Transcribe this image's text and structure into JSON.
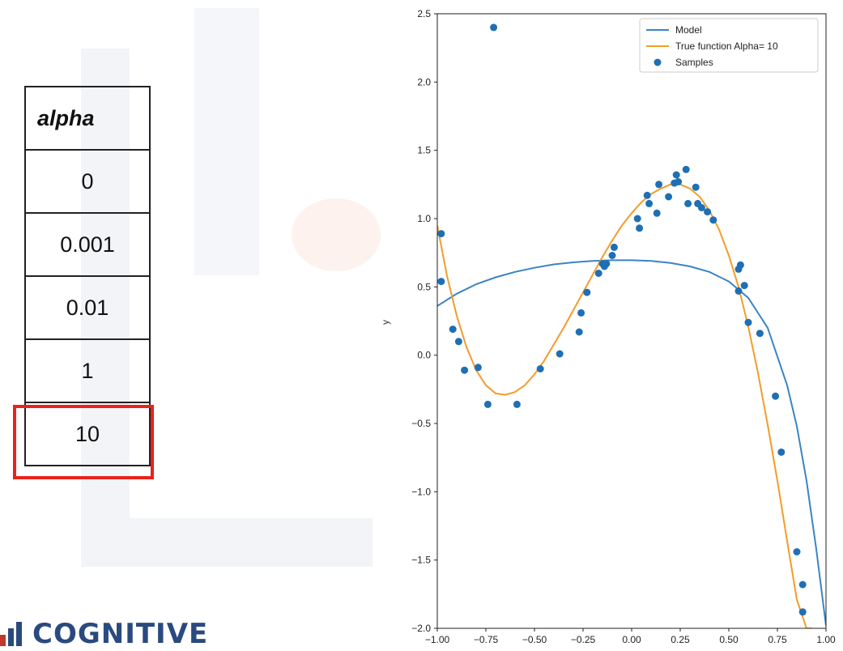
{
  "alpha_table": {
    "header": "alpha",
    "rows": [
      "0",
      "0.001",
      "0.01",
      "1",
      "10"
    ],
    "highlighted_value": "10",
    "highlight_color": "#e8231b"
  },
  "logo": {
    "text": "COGNITIVE",
    "color": "#2a4a7f"
  },
  "chart_data": {
    "type": "line",
    "xlabel": "",
    "ylabel": "y",
    "xlim": [
      -1.0,
      1.0
    ],
    "ylim": [
      -2.0,
      2.5
    ],
    "x_ticks": [
      -1.0,
      -0.75,
      -0.5,
      -0.25,
      0.0,
      0.25,
      0.5,
      0.75,
      1.0
    ],
    "x_tick_labels": [
      "−1.00",
      "−0.75",
      "−0.50",
      "−0.25",
      "0.00",
      "0.25",
      "0.50",
      "0.75",
      "1.00"
    ],
    "y_ticks": [
      -2.0,
      -1.5,
      -1.0,
      -0.5,
      0.0,
      0.5,
      1.0,
      1.5,
      2.0,
      2.5
    ],
    "y_tick_labels": [
      "−2.0",
      "−1.5",
      "−1.0",
      "−0.5",
      "0.0",
      "0.5",
      "1.0",
      "1.5",
      "2.0",
      "2.5"
    ],
    "grid": false,
    "legend_position": "top-right",
    "series": [
      {
        "name": "Model",
        "kind": "line",
        "color": "#3b84c4",
        "x": [
          -1.0,
          -0.9,
          -0.8,
          -0.7,
          -0.6,
          -0.5,
          -0.4,
          -0.3,
          -0.2,
          -0.1,
          0.0,
          0.1,
          0.2,
          0.3,
          0.4,
          0.5,
          0.6,
          0.7,
          0.8,
          0.85,
          0.9,
          0.95,
          1.0
        ],
        "y": [
          0.36,
          0.45,
          0.52,
          0.57,
          0.61,
          0.64,
          0.665,
          0.68,
          0.69,
          0.695,
          0.695,
          0.69,
          0.675,
          0.65,
          0.61,
          0.54,
          0.42,
          0.2,
          -0.22,
          -0.52,
          -0.92,
          -1.42,
          -1.98
        ]
      },
      {
        "name": "True function Alpha= 10",
        "kind": "line",
        "color": "#f39c2a",
        "x": [
          -1.0,
          -0.95,
          -0.9,
          -0.85,
          -0.8,
          -0.75,
          -0.7,
          -0.65,
          -0.6,
          -0.55,
          -0.5,
          -0.45,
          -0.4,
          -0.35,
          -0.3,
          -0.25,
          -0.2,
          -0.15,
          -0.1,
          -0.05,
          0.0,
          0.05,
          0.1,
          0.15,
          0.2,
          0.25,
          0.3,
          0.35,
          0.4,
          0.45,
          0.5,
          0.55,
          0.6,
          0.65,
          0.7,
          0.75,
          0.8,
          0.85,
          0.9,
          0.93
        ],
        "y": [
          0.95,
          0.58,
          0.29,
          0.06,
          -0.11,
          -0.22,
          -0.28,
          -0.29,
          -0.27,
          -0.22,
          -0.14,
          -0.04,
          0.08,
          0.2,
          0.33,
          0.46,
          0.59,
          0.72,
          0.84,
          0.95,
          1.04,
          1.12,
          1.18,
          1.22,
          1.25,
          1.25,
          1.22,
          1.16,
          1.06,
          0.92,
          0.73,
          0.5,
          0.21,
          -0.13,
          -0.51,
          -0.92,
          -1.36,
          -1.79,
          -2.0,
          -2.0
        ]
      },
      {
        "name": "Samples",
        "kind": "scatter",
        "color": "#1f6fb4",
        "x": [
          -0.98,
          -0.98,
          -0.71,
          -0.92,
          -0.89,
          -0.86,
          -0.79,
          -0.74,
          -0.59,
          -0.47,
          -0.37,
          -0.27,
          -0.26,
          -0.23,
          -0.17,
          -0.15,
          -0.14,
          -0.13,
          -0.1,
          -0.09,
          0.03,
          0.04,
          0.08,
          0.09,
          0.13,
          0.14,
          0.19,
          0.22,
          0.23,
          0.24,
          0.28,
          0.29,
          0.33,
          0.34,
          0.36,
          0.39,
          0.42,
          0.55,
          0.55,
          0.56,
          0.58,
          0.6,
          0.66,
          0.74,
          0.77,
          0.85,
          0.88,
          0.88
        ],
        "y": [
          0.89,
          0.54,
          2.4,
          0.19,
          0.1,
          -0.11,
          -0.09,
          -0.36,
          -0.36,
          -0.1,
          0.01,
          0.17,
          0.31,
          0.46,
          0.6,
          0.67,
          0.65,
          0.67,
          0.73,
          0.79,
          1.0,
          0.93,
          1.17,
          1.11,
          1.04,
          1.25,
          1.16,
          1.26,
          1.32,
          1.27,
          1.36,
          1.11,
          1.23,
          1.11,
          1.08,
          1.05,
          0.99,
          0.63,
          0.47,
          0.66,
          0.51,
          0.24,
          0.16,
          -0.3,
          -0.71,
          -1.44,
          -1.68,
          -1.88
        ]
      }
    ]
  }
}
